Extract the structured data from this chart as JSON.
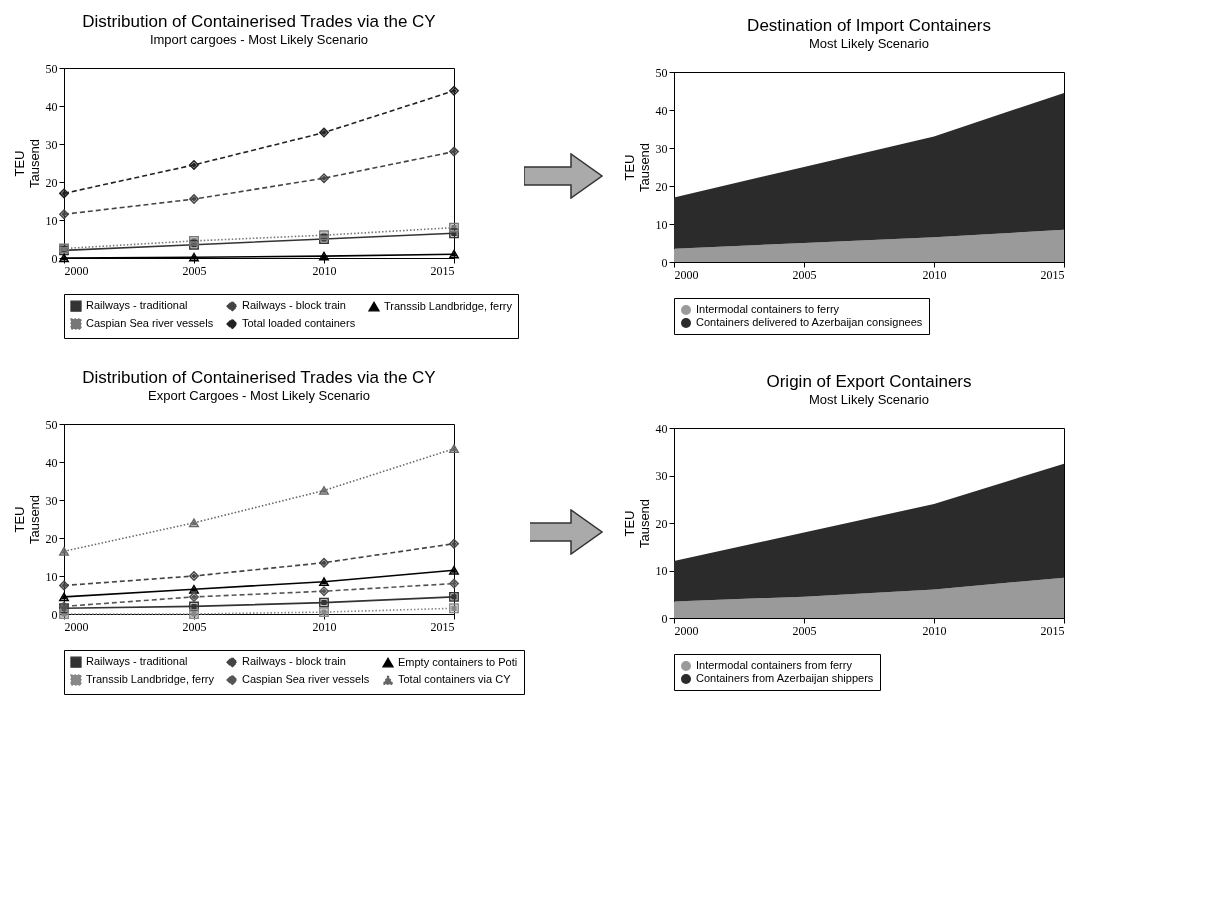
{
  "chart_data": [
    {
      "type": "line",
      "title": "Distribution of Containerised Trades via the CY",
      "subtitle": "Import cargoes - Most Likely Scenario",
      "ylabel": "TEU\nTausend",
      "x": [
        2000,
        2005,
        2010,
        2015
      ],
      "xlim": [
        2000,
        2015
      ],
      "xticks": [
        2000,
        2005,
        2010,
        2015
      ],
      "ylim": [
        0,
        50
      ],
      "yticks": [
        0,
        10,
        20,
        30,
        40,
        50
      ],
      "legend": "bottom",
      "series": [
        {
          "name": "Railways - traditional",
          "color": "#333333",
          "marker": "square",
          "line_style": "solid",
          "values": [
            2,
            3.5,
            5,
            6.5
          ]
        },
        {
          "name": "Railways - block train",
          "color": "#444444",
          "marker": "diamond",
          "line_style": "dashed",
          "values": [
            11.5,
            15.5,
            21,
            28
          ]
        },
        {
          "name": "Transsib Landbridge, ferry",
          "color": "#000000",
          "marker": "triangle",
          "line_style": "solid",
          "values": [
            0,
            0.2,
            0.5,
            1
          ]
        },
        {
          "name": "Caspian Sea river vessels",
          "color": "#777777",
          "marker": "square",
          "line_style": "dotted",
          "values": [
            2.5,
            4.5,
            6,
            8
          ]
        },
        {
          "name": "Total loaded containers",
          "color": "#222222",
          "marker": "diamond",
          "line_style": "dashed",
          "values": [
            17,
            24.5,
            33,
            44
          ]
        }
      ]
    },
    {
      "type": "area",
      "stacked": true,
      "title": "Destination of Import Containers",
      "subtitle": "Most Likely Scenario",
      "ylabel": "TEU\nTausend",
      "x": [
        2000,
        2005,
        2010,
        2015
      ],
      "xlim": [
        2000,
        2015
      ],
      "xticks": [
        2000,
        2005,
        2010,
        2015
      ],
      "ylim": [
        0,
        50
      ],
      "yticks": [
        0,
        10,
        20,
        30,
        40,
        50
      ],
      "legend": "bottom",
      "series": [
        {
          "name": "Intermodal containers to ferry",
          "color": "#9a9a9a",
          "values": [
            3.5,
            5,
            6.5,
            8.5
          ]
        },
        {
          "name": "Containers delivered to Azerbaijan consignees",
          "color": "#2b2b2b",
          "values": [
            13.5,
            20,
            26.5,
            36
          ]
        }
      ]
    },
    {
      "type": "line",
      "title": "Distribution of Containerised Trades via the CY",
      "subtitle": "Export Cargoes - Most Likely Scenario",
      "ylabel": "TEU\nTausend",
      "x": [
        2000,
        2005,
        2010,
        2015
      ],
      "xlim": [
        2000,
        2015
      ],
      "xticks": [
        2000,
        2005,
        2010,
        2015
      ],
      "ylim": [
        0,
        50
      ],
      "yticks": [
        0,
        10,
        20,
        30,
        40,
        50
      ],
      "legend": "bottom",
      "series": [
        {
          "name": "Railways - traditional",
          "color": "#333333",
          "marker": "square",
          "line_style": "solid",
          "values": [
            1.5,
            2,
            3,
            4.5
          ]
        },
        {
          "name": "Railways - block train",
          "color": "#444444",
          "marker": "diamond",
          "line_style": "dashed",
          "values": [
            7.5,
            10,
            13.5,
            18.5
          ]
        },
        {
          "name": "Empty containers to Poti",
          "color": "#000000",
          "marker": "triangle",
          "line_style": "solid",
          "values": [
            4.5,
            6.5,
            8.5,
            11.5
          ]
        },
        {
          "name": "Transsib Landbridge, ferry",
          "color": "#888888",
          "marker": "square",
          "line_style": "dotted",
          "values": [
            0,
            0,
            0.5,
            1.5
          ]
        },
        {
          "name": "Caspian Sea river vessels",
          "color": "#555555",
          "marker": "diamond",
          "line_style": "dashed",
          "values": [
            2,
            4.5,
            6,
            8
          ]
        },
        {
          "name": "Total containers via CY",
          "color": "#666666",
          "marker": "triangle",
          "line_style": "dotted",
          "values": [
            16.5,
            24,
            32.5,
            43.5
          ]
        }
      ]
    },
    {
      "type": "area",
      "stacked": true,
      "title": "Origin of Export Containers",
      "subtitle": "Most Likely Scenario",
      "ylabel": "TEU\nTausend",
      "x": [
        2000,
        2005,
        2010,
        2015
      ],
      "xlim": [
        2000,
        2015
      ],
      "xticks": [
        2000,
        2005,
        2010,
        2015
      ],
      "ylim": [
        0,
        40
      ],
      "yticks": [
        0,
        10,
        20,
        30,
        40
      ],
      "legend": "bottom",
      "series": [
        {
          "name": "Intermodal containers from ferry",
          "color": "#9a9a9a",
          "values": [
            3.5,
            4.5,
            6,
            8.5
          ]
        },
        {
          "name": "Containers from Azerbaijan shippers",
          "color": "#2b2b2b",
          "values": [
            8.5,
            13.5,
            18,
            24
          ]
        }
      ]
    }
  ]
}
